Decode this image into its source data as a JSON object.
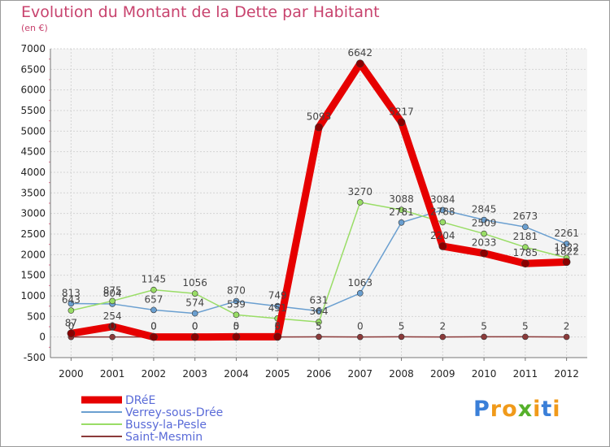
{
  "chart_data": {
    "type": "line",
    "title": "Evolution du Montant de la Dette par Habitant",
    "subtitle": "(en €)",
    "x": [
      "2000",
      "2001",
      "2002",
      "2003",
      "2004",
      "2005",
      "2006",
      "2007",
      "2008",
      "2009",
      "2010",
      "2011",
      "2012"
    ],
    "yticks": [
      -500,
      0,
      500,
      1000,
      1500,
      2000,
      2500,
      3000,
      3500,
      4000,
      4500,
      5000,
      5500,
      6000,
      6500,
      7000
    ],
    "ylim": [
      -500,
      7000
    ],
    "grid": true,
    "legend_position": "bottom-left",
    "series": [
      {
        "name": "DRéE",
        "color": "#e60000",
        "values": [
          87,
          254,
          0,
          0,
          5,
          5,
          5093,
          6642,
          5217,
          2204,
          2033,
          1785,
          1822
        ],
        "labels": [
          "87",
          "254",
          "0",
          "0",
          "5",
          "5",
          "5093",
          "6642",
          "5217",
          "2204",
          "2033",
          "1785",
          "1822"
        ]
      },
      {
        "name": "Verrey-sous-Drée",
        "color": "#6a9fd0",
        "values": [
          813,
          804,
          657,
          574,
          870,
          749,
          631,
          1063,
          2781,
          3084,
          2845,
          2673,
          2261
        ],
        "labels": [
          "813",
          "804",
          "657",
          "574",
          "870",
          "749",
          "631",
          "1063",
          "2781",
          "3084",
          "2845",
          "2673",
          "2261"
        ]
      },
      {
        "name": "Bussy-la-Pesle",
        "color": "#99dd66",
        "values": [
          643,
          875,
          1145,
          1056,
          539,
          451,
          364,
          3270,
          3088,
          2788,
          2509,
          2181,
          1922
        ],
        "labels": [
          "643",
          "875",
          "1145",
          "1056",
          "539",
          "451",
          "364",
          "3270",
          "3088",
          "2788",
          "2509",
          "2181",
          "1922"
        ]
      },
      {
        "name": "Saint-Mesmin",
        "color": "#8b3a3a",
        "values": [
          0,
          0,
          0,
          0,
          0,
          0,
          5,
          0,
          5,
          2,
          5,
          5,
          2
        ],
        "labels": [
          "0",
          "0",
          "0",
          "0",
          "0",
          "0",
          "5",
          "0",
          "5",
          "2",
          "5",
          "5",
          "2"
        ]
      }
    ]
  },
  "brand": {
    "letters": [
      "P",
      "r",
      "o",
      "x",
      "i",
      "t",
      "i"
    ],
    "colors": [
      "#3a7fd8",
      "#f09a1a",
      "#f09a1a",
      "#55b02a",
      "#f09a1a",
      "#3a7fd8",
      "#f09a1a"
    ]
  }
}
